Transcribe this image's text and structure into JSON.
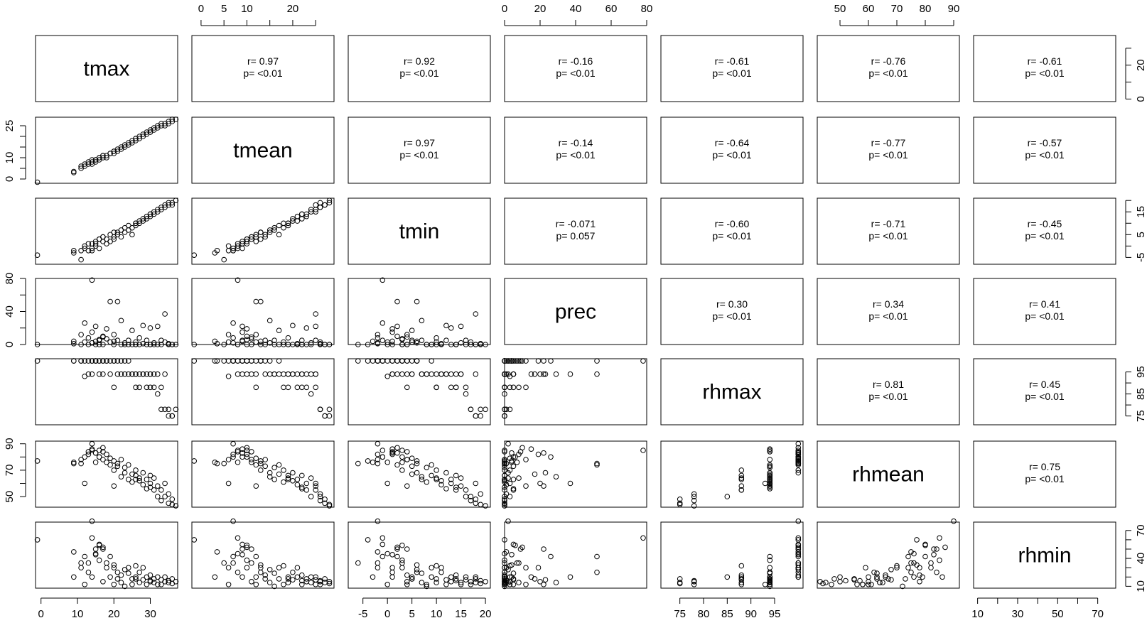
{
  "chart_data": {
    "type": "scatter-matrix",
    "variables": [
      "tmax",
      "tmean",
      "tmin",
      "prec",
      "rhmax",
      "rhmean",
      "rhmin"
    ],
    "ranges": {
      "tmax": [
        -1.5,
        37.5
      ],
      "tmean": [
        -2,
        29
      ],
      "tmin": [
        -8,
        21
      ],
      "prec": [
        0,
        80
      ],
      "rhmax": [
        71,
        101
      ],
      "rhmean": [
        42,
        92
      ],
      "rhmin": [
        8,
        79
      ]
    },
    "ticks": {
      "tmax": [
        0,
        10,
        20,
        30
      ],
      "tmean": [
        0,
        5,
        10,
        15,
        20,
        25
      ],
      "tmin": [
        -5,
        0,
        5,
        10,
        15,
        20
      ],
      "prec": [
        0,
        20,
        40,
        60,
        80
      ],
      "rhmax": [
        75,
        80,
        85,
        90,
        95
      ],
      "rhmean": [
        50,
        60,
        70,
        80,
        90
      ],
      "rhmin": [
        10,
        20,
        30,
        40,
        50,
        60,
        70
      ]
    },
    "tick_labels": {
      "tmax": [
        "0",
        "10",
        "20",
        "30"
      ],
      "tmean_top": [
        "0",
        "5",
        "10",
        "20"
      ],
      "tmean_left": [
        "0",
        "10",
        "25"
      ],
      "tmin": [
        "-5",
        "0",
        "5",
        "10",
        "15",
        "20"
      ],
      "tmin_right": [
        "-5",
        "5",
        "15"
      ],
      "prec": [
        "0",
        "20",
        "40",
        "60",
        "80"
      ],
      "prec_left": [
        "0",
        "40",
        "80"
      ],
      "rhmax": [
        "75",
        "80",
        "85",
        "90",
        "95"
      ],
      "rhmax_right": [
        "75",
        "85",
        "95"
      ],
      "rhmean": [
        "50",
        "60",
        "70",
        "80",
        "90"
      ],
      "rhmean_left": [
        "50",
        "70",
        "90"
      ],
      "rhmin": [
        "10",
        "30",
        "50",
        "70"
      ],
      "rhmin_right": [
        "10",
        "40",
        "70"
      ],
      "tmax_right": [
        "0",
        "20"
      ]
    },
    "correlations": [
      {
        "i": 0,
        "j": 1,
        "r": "r= 0.97",
        "p": "p= <0.01"
      },
      {
        "i": 0,
        "j": 2,
        "r": "r= 0.92",
        "p": "p= <0.01"
      },
      {
        "i": 0,
        "j": 3,
        "r": "r= -0.16",
        "p": "p= <0.01"
      },
      {
        "i": 0,
        "j": 4,
        "r": "r= -0.61",
        "p": "p= <0.01"
      },
      {
        "i": 0,
        "j": 5,
        "r": "r= -0.76",
        "p": "p= <0.01"
      },
      {
        "i": 0,
        "j": 6,
        "r": "r= -0.61",
        "p": "p= <0.01"
      },
      {
        "i": 1,
        "j": 2,
        "r": "r= 0.97",
        "p": "p= <0.01"
      },
      {
        "i": 1,
        "j": 3,
        "r": "r= -0.14",
        "p": "p= <0.01"
      },
      {
        "i": 1,
        "j": 4,
        "r": "r= -0.64",
        "p": "p= <0.01"
      },
      {
        "i": 1,
        "j": 5,
        "r": "r= -0.77",
        "p": "p= <0.01"
      },
      {
        "i": 1,
        "j": 6,
        "r": "r= -0.57",
        "p": "p= <0.01"
      },
      {
        "i": 2,
        "j": 3,
        "r": "r= -0.071",
        "p": "p= 0.057"
      },
      {
        "i": 2,
        "j": 4,
        "r": "r= -0.60",
        "p": "p= <0.01"
      },
      {
        "i": 2,
        "j": 5,
        "r": "r= -0.71",
        "p": "p= <0.01"
      },
      {
        "i": 2,
        "j": 6,
        "r": "r= -0.45",
        "p": "p= <0.01"
      },
      {
        "i": 3,
        "j": 4,
        "r": "r= 0.30",
        "p": "p= <0.01"
      },
      {
        "i": 3,
        "j": 5,
        "r": "r= 0.34",
        "p": "p= <0.01"
      },
      {
        "i": 3,
        "j": 6,
        "r": "r= 0.41",
        "p": "p= <0.01"
      },
      {
        "i": 4,
        "j": 5,
        "r": "r= 0.81",
        "p": "p= <0.01"
      },
      {
        "i": 4,
        "j": 6,
        "r": "r= 0.45",
        "p": "p= <0.01"
      },
      {
        "i": 5,
        "j": 6,
        "r": "r= 0.75",
        "p": "p= <0.01"
      }
    ],
    "observations": [
      {
        "tmax": -1,
        "tmean": -1.5,
        "tmin": -4,
        "prec": 0,
        "rhmax": 100,
        "rhmean": 77,
        "rhmin": 60
      },
      {
        "tmax": 9,
        "tmean": 3.5,
        "tmin": -2,
        "prec": 1,
        "rhmax": 100,
        "rhmean": 75,
        "rhmin": 47
      },
      {
        "tmax": 9,
        "tmean": 3,
        "tmin": -3,
        "prec": 4,
        "rhmax": 100,
        "rhmean": 76,
        "rhmin": 20
      },
      {
        "tmax": 11,
        "tmean": 5,
        "tmin": -6,
        "prec": 0,
        "rhmax": 100,
        "rhmean": 75,
        "rhmin": 35
      },
      {
        "tmax": 11,
        "tmean": 6,
        "tmin": -2,
        "prec": 12,
        "rhmax": 100,
        "rhmean": 78,
        "rhmin": 30
      },
      {
        "tmax": 12,
        "tmean": 6,
        "tmin": 0,
        "prec": 3,
        "rhmax": 93,
        "rhmean": 60,
        "rhmin": 12
      },
      {
        "tmax": 12,
        "tmean": 7,
        "tmin": -1,
        "prec": 26,
        "rhmax": 100,
        "rhmean": 80,
        "rhmin": 42
      },
      {
        "tmax": 13,
        "tmean": 7,
        "tmin": -2,
        "prec": 8,
        "rhmax": 100,
        "rhmean": 82,
        "rhmin": 35
      },
      {
        "tmax": 13,
        "tmean": 8,
        "tmin": 1,
        "prec": 0,
        "rhmax": 94,
        "rhmean": 84,
        "rhmin": 25
      },
      {
        "tmax": 14,
        "tmean": 7,
        "tmin": -2,
        "prec": 2,
        "rhmax": 100,
        "rhmean": 90,
        "rhmin": 80
      },
      {
        "tmax": 14,
        "tmean": 8,
        "tmin": -1,
        "prec": 78,
        "rhmax": 100,
        "rhmean": 85,
        "rhmin": 62
      },
      {
        "tmax": 14,
        "tmean": 9,
        "tmin": 1,
        "prec": 15,
        "rhmax": 94,
        "rhmean": 86,
        "rhmin": 20
      },
      {
        "tmax": 15,
        "tmean": 8,
        "tmin": 0,
        "prec": 0,
        "rhmax": 100,
        "rhmean": 76,
        "rhmin": 45
      },
      {
        "tmax": 15,
        "tmean": 9,
        "tmin": 2,
        "prec": 22,
        "rhmax": 100,
        "rhmean": 83,
        "rhmin": 50
      },
      {
        "tmax": 16,
        "tmean": 9,
        "tmin": -1,
        "prec": 5,
        "rhmax": 100,
        "rhmean": 80,
        "rhmin": 55
      },
      {
        "tmax": 16,
        "tmean": 10,
        "tmin": 3,
        "prec": 0,
        "rhmax": 94,
        "rhmean": 85,
        "rhmin": 38
      },
      {
        "tmax": 17,
        "tmean": 10,
        "tmin": 2,
        "prec": 10,
        "rhmax": 100,
        "rhmean": 87,
        "rhmin": 52
      },
      {
        "tmax": 17,
        "tmean": 11,
        "tmin": 4,
        "prec": 0,
        "rhmax": 94,
        "rhmean": 78,
        "rhmin": 15
      },
      {
        "tmax": 18,
        "tmean": 10,
        "tmin": 1,
        "prec": 19,
        "rhmax": 100,
        "rhmean": 82,
        "rhmin": 30
      },
      {
        "tmax": 18,
        "tmean": 11,
        "tmin": 3,
        "prec": 7,
        "rhmax": 100,
        "rhmean": 76,
        "rhmin": 35
      },
      {
        "tmax": 19,
        "tmean": 12,
        "tmin": 2,
        "prec": 52,
        "rhmax": 94,
        "rhmean": 74,
        "rhmin": 42
      },
      {
        "tmax": 19,
        "tmean": 12,
        "tmin": 5,
        "prec": 3,
        "rhmax": 100,
        "rhmean": 79,
        "rhmin": 20
      },
      {
        "tmax": 20,
        "tmean": 12,
        "tmin": 4,
        "prec": 12,
        "rhmax": 88,
        "rhmean": 58,
        "rhmin": 12
      },
      {
        "tmax": 20,
        "tmean": 13,
        "tmin": 3,
        "prec": 0,
        "rhmax": 100,
        "rhmean": 70,
        "rhmin": 30
      },
      {
        "tmax": 21,
        "tmean": 13,
        "tmin": 6,
        "prec": 52,
        "rhmax": 100,
        "rhmean": 75,
        "rhmin": 25
      },
      {
        "tmax": 21,
        "tmean": 14,
        "tmin": 5,
        "prec": 5,
        "rhmax": 94,
        "rhmean": 73,
        "rhmin": 18
      },
      {
        "tmax": 22,
        "tmean": 14,
        "tmin": 4,
        "prec": 0,
        "rhmax": 100,
        "rhmean": 78,
        "rhmin": 22
      },
      {
        "tmax": 22,
        "tmean": 15,
        "tmin": 7,
        "prec": 29,
        "rhmax": 94,
        "rhmean": 65,
        "rhmin": 14
      },
      {
        "tmax": 23,
        "tmean": 15,
        "tmin": 6,
        "prec": 2,
        "rhmax": 100,
        "rhmean": 68,
        "rhmin": 28
      },
      {
        "tmax": 23,
        "tmean": 16,
        "tmin": 8,
        "prec": 0,
        "rhmax": 94,
        "rhmean": 72,
        "rhmin": 10
      },
      {
        "tmax": 24,
        "tmean": 16,
        "tmin": 7,
        "prec": 5,
        "rhmax": 94,
        "rhmean": 63,
        "rhmin": 24
      },
      {
        "tmax": 24,
        "tmean": 17,
        "tmin": 9,
        "prec": 0,
        "rhmax": 100,
        "rhmean": 74,
        "rhmin": 30
      },
      {
        "tmax": 25,
        "tmean": 17,
        "tmin": 5,
        "prec": 17,
        "rhmax": 94,
        "rhmean": 67,
        "rhmin": 18
      },
      {
        "tmax": 25,
        "tmean": 18,
        "tmin": 8,
        "prec": 0,
        "rhmax": 94,
        "rhmean": 61,
        "rhmin": 12
      },
      {
        "tmax": 26,
        "tmean": 18,
        "tmin": 10,
        "prec": 3,
        "rhmax": 88,
        "rhmean": 70,
        "rhmin": 32
      },
      {
        "tmax": 26,
        "tmean": 19,
        "tmin": 9,
        "prec": 0,
        "rhmax": 94,
        "rhmean": 66,
        "rhmin": 20
      },
      {
        "tmax": 27,
        "tmean": 19,
        "tmin": 10,
        "prec": 8,
        "rhmax": 88,
        "rhmean": 64,
        "rhmin": 14
      },
      {
        "tmax": 27,
        "tmean": 20,
        "tmin": 11,
        "prec": 0,
        "rhmax": 94,
        "rhmean": 62,
        "rhmin": 25
      },
      {
        "tmax": 28,
        "tmean": 20,
        "tmin": 12,
        "prec": 23,
        "rhmax": 94,
        "rhmean": 68,
        "rhmin": 17
      },
      {
        "tmax": 28,
        "tmean": 21,
        "tmin": 11,
        "prec": 1,
        "rhmax": 94,
        "rhmean": 59,
        "rhmin": 30
      },
      {
        "tmax": 29,
        "tmean": 21,
        "tmin": 13,
        "prec": 0,
        "rhmax": 88,
        "rhmean": 63,
        "rhmin": 20
      },
      {
        "tmax": 29,
        "tmean": 22,
        "tmin": 12,
        "prec": 5,
        "rhmax": 94,
        "rhmean": 56,
        "rhmin": 12
      },
      {
        "tmax": 30,
        "tmean": 22,
        "tmin": 14,
        "prec": 0,
        "rhmax": 88,
        "rhmean": 66,
        "rhmin": 22
      },
      {
        "tmax": 30,
        "tmean": 23,
        "tmin": 13,
        "prec": 20,
        "rhmax": 94,
        "rhmean": 60,
        "rhmin": 15
      },
      {
        "tmax": 31,
        "tmean": 23,
        "tmin": 14,
        "prec": 0,
        "rhmax": 88,
        "rhmean": 55,
        "rhmin": 18
      },
      {
        "tmax": 31,
        "tmean": 24,
        "tmin": 15,
        "prec": 2,
        "rhmax": 94,
        "rhmean": 64,
        "rhmin": 14
      },
      {
        "tmax": 32,
        "tmean": 24,
        "tmin": 16,
        "prec": 0,
        "rhmax": 85,
        "rhmean": 50,
        "rhmin": 20
      },
      {
        "tmax": 32,
        "tmean": 25,
        "tmin": 15,
        "prec": 22,
        "rhmax": 94,
        "rhmean": 58,
        "rhmin": 12
      },
      {
        "tmax": 33,
        "tmean": 25,
        "tmin": 16,
        "prec": 5,
        "rhmax": 88,
        "rhmean": 55,
        "rhmin": 17
      },
      {
        "tmax": 33,
        "tmean": 26,
        "tmin": 17,
        "prec": 0,
        "rhmax": 78,
        "rhmean": 47,
        "rhmin": 12
      },
      {
        "tmax": 34,
        "tmean": 25,
        "tmin": 18,
        "prec": 37,
        "rhmax": 94,
        "rhmean": 60,
        "rhmin": 20
      },
      {
        "tmax": 34,
        "tmean": 26,
        "tmin": 17,
        "prec": 3,
        "rhmax": 78,
        "rhmean": 50,
        "rhmin": 15
      },
      {
        "tmax": 35,
        "tmean": 27,
        "tmin": 18,
        "prec": 0,
        "rhmax": 75,
        "rhmean": 45,
        "rhmin": 14
      },
      {
        "tmax": 35,
        "tmean": 26,
        "tmin": 19,
        "prec": 1,
        "rhmax": 78,
        "rhmean": 52,
        "rhmin": 16
      },
      {
        "tmax": 36,
        "tmean": 27,
        "tmin": 18,
        "prec": 0,
        "rhmax": 75,
        "rhmean": 48,
        "rhmin": 18
      },
      {
        "tmax": 36,
        "tmean": 28,
        "tmin": 19,
        "prec": 0,
        "rhmax": 75,
        "rhmean": 44,
        "rhmin": 13
      },
      {
        "tmax": 37,
        "tmean": 28,
        "tmin": 20,
        "prec": 0,
        "rhmax": 78,
        "rhmean": 43,
        "rhmin": 15
      },
      {
        "tmax": 16,
        "tmean": 10,
        "tmin": 3,
        "prec": 6,
        "rhmax": 100,
        "rhmean": 80,
        "rhmin": 54
      },
      {
        "tmax": 15,
        "tmean": 9,
        "tmin": 1,
        "prec": 4,
        "rhmax": 100,
        "rhmean": 83,
        "rhmin": 44
      },
      {
        "tmax": 17,
        "tmean": 11,
        "tmin": 4,
        "prec": 9,
        "rhmax": 100,
        "rhmean": 84,
        "rhmin": 50
      },
      {
        "tmax": 20,
        "tmean": 13,
        "tmin": 6,
        "prec": 4,
        "rhmax": 100,
        "rhmean": 77,
        "rhmin": 33
      },
      {
        "tmax": 26,
        "tmean": 19,
        "tmin": 10,
        "prec": 0,
        "rhmax": 94,
        "rhmean": 63,
        "rhmin": 18
      },
      {
        "tmax": 30,
        "tmean": 22,
        "tmin": 14,
        "prec": 0,
        "rhmax": 94,
        "rhmean": 57,
        "rhmin": 16
      }
    ]
  }
}
